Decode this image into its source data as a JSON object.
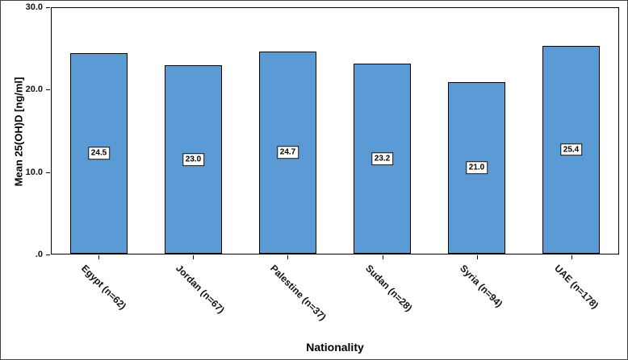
{
  "chart_data": {
    "type": "bar",
    "title": "",
    "categories": [
      "Egypt (n=62)",
      "Jordan (n=67)",
      "Palestine (n=37)",
      "Sudan (n=28)",
      "Syria (n=94)",
      "UAE (n=178)"
    ],
    "values": [
      24.5,
      23.0,
      24.7,
      23.2,
      21.0,
      25.4
    ],
    "value_labels": [
      "24.5",
      "23.0",
      "24.7",
      "23.2",
      "21.0",
      "25.4"
    ],
    "xlabel": "Nationality",
    "ylabel": "Mean 25(OH)D [ng/ml]",
    "ylim": [
      0,
      30
    ],
    "yticks": [
      0,
      10,
      20,
      30
    ],
    "ytick_labels": [
      ".0",
      "10.0",
      "20.0",
      "30.0"
    ],
    "bar_color": "#5b9bd5",
    "bar_border_color": "#000000",
    "grid": false,
    "legend_position": "none"
  }
}
